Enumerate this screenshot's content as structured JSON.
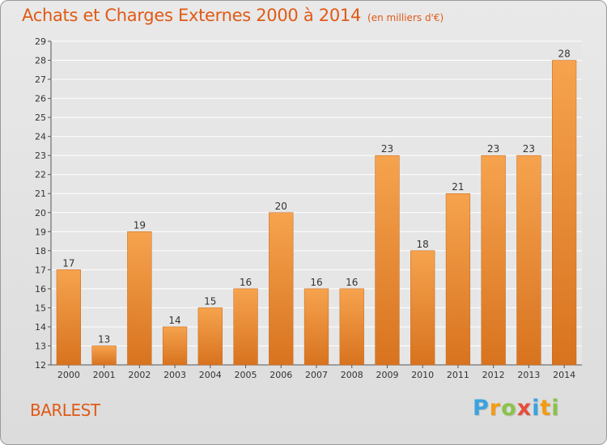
{
  "title": "Achats et Charges Externes 2000 à 2014",
  "subtitle": "(en milliers d'€)",
  "place_label": "BARLEST",
  "logo": {
    "text": "Proxiti",
    "letters": [
      {
        "ch": "P",
        "color": "#3aa3df"
      },
      {
        "ch": "r",
        "color": "#f39c12"
      },
      {
        "ch": "o",
        "color": "#8bc34a"
      },
      {
        "ch": "x",
        "color": "#e74c3c"
      },
      {
        "ch": "i",
        "color": "#3aa3df"
      },
      {
        "ch": "t",
        "color": "#f39c12"
      },
      {
        "ch": "i",
        "color": "#8bc34a"
      }
    ]
  },
  "colors": {
    "bar_top": "#f6a34e",
    "bar_bottom": "#d8731f",
    "bar_edge": "#c4661a",
    "title": "#e05a16",
    "grid": "#ffffff",
    "axis_text": "#333333"
  },
  "chart_data": {
    "type": "bar",
    "categories": [
      "2000",
      "2001",
      "2002",
      "2003",
      "2004",
      "2005",
      "2006",
      "2007",
      "2008",
      "2009",
      "2010",
      "2011",
      "2012",
      "2013",
      "2014"
    ],
    "values": [
      17,
      13,
      19,
      14,
      15,
      16,
      20,
      16,
      16,
      23,
      18,
      21,
      23,
      23,
      28
    ],
    "ylim": [
      12,
      29
    ],
    "yticks": [
      12,
      13,
      14,
      15,
      16,
      17,
      18,
      19,
      20,
      21,
      22,
      23,
      24,
      25,
      26,
      27,
      28,
      29
    ],
    "ytick_labels": [
      "12",
      "13",
      "14",
      "15",
      "16",
      "17",
      "18",
      "19",
      "20",
      "21",
      "22",
      "23",
      "24",
      "25",
      "26",
      "27",
      "28",
      "29"
    ],
    "grid": true,
    "xlabel": "",
    "ylabel": ""
  }
}
